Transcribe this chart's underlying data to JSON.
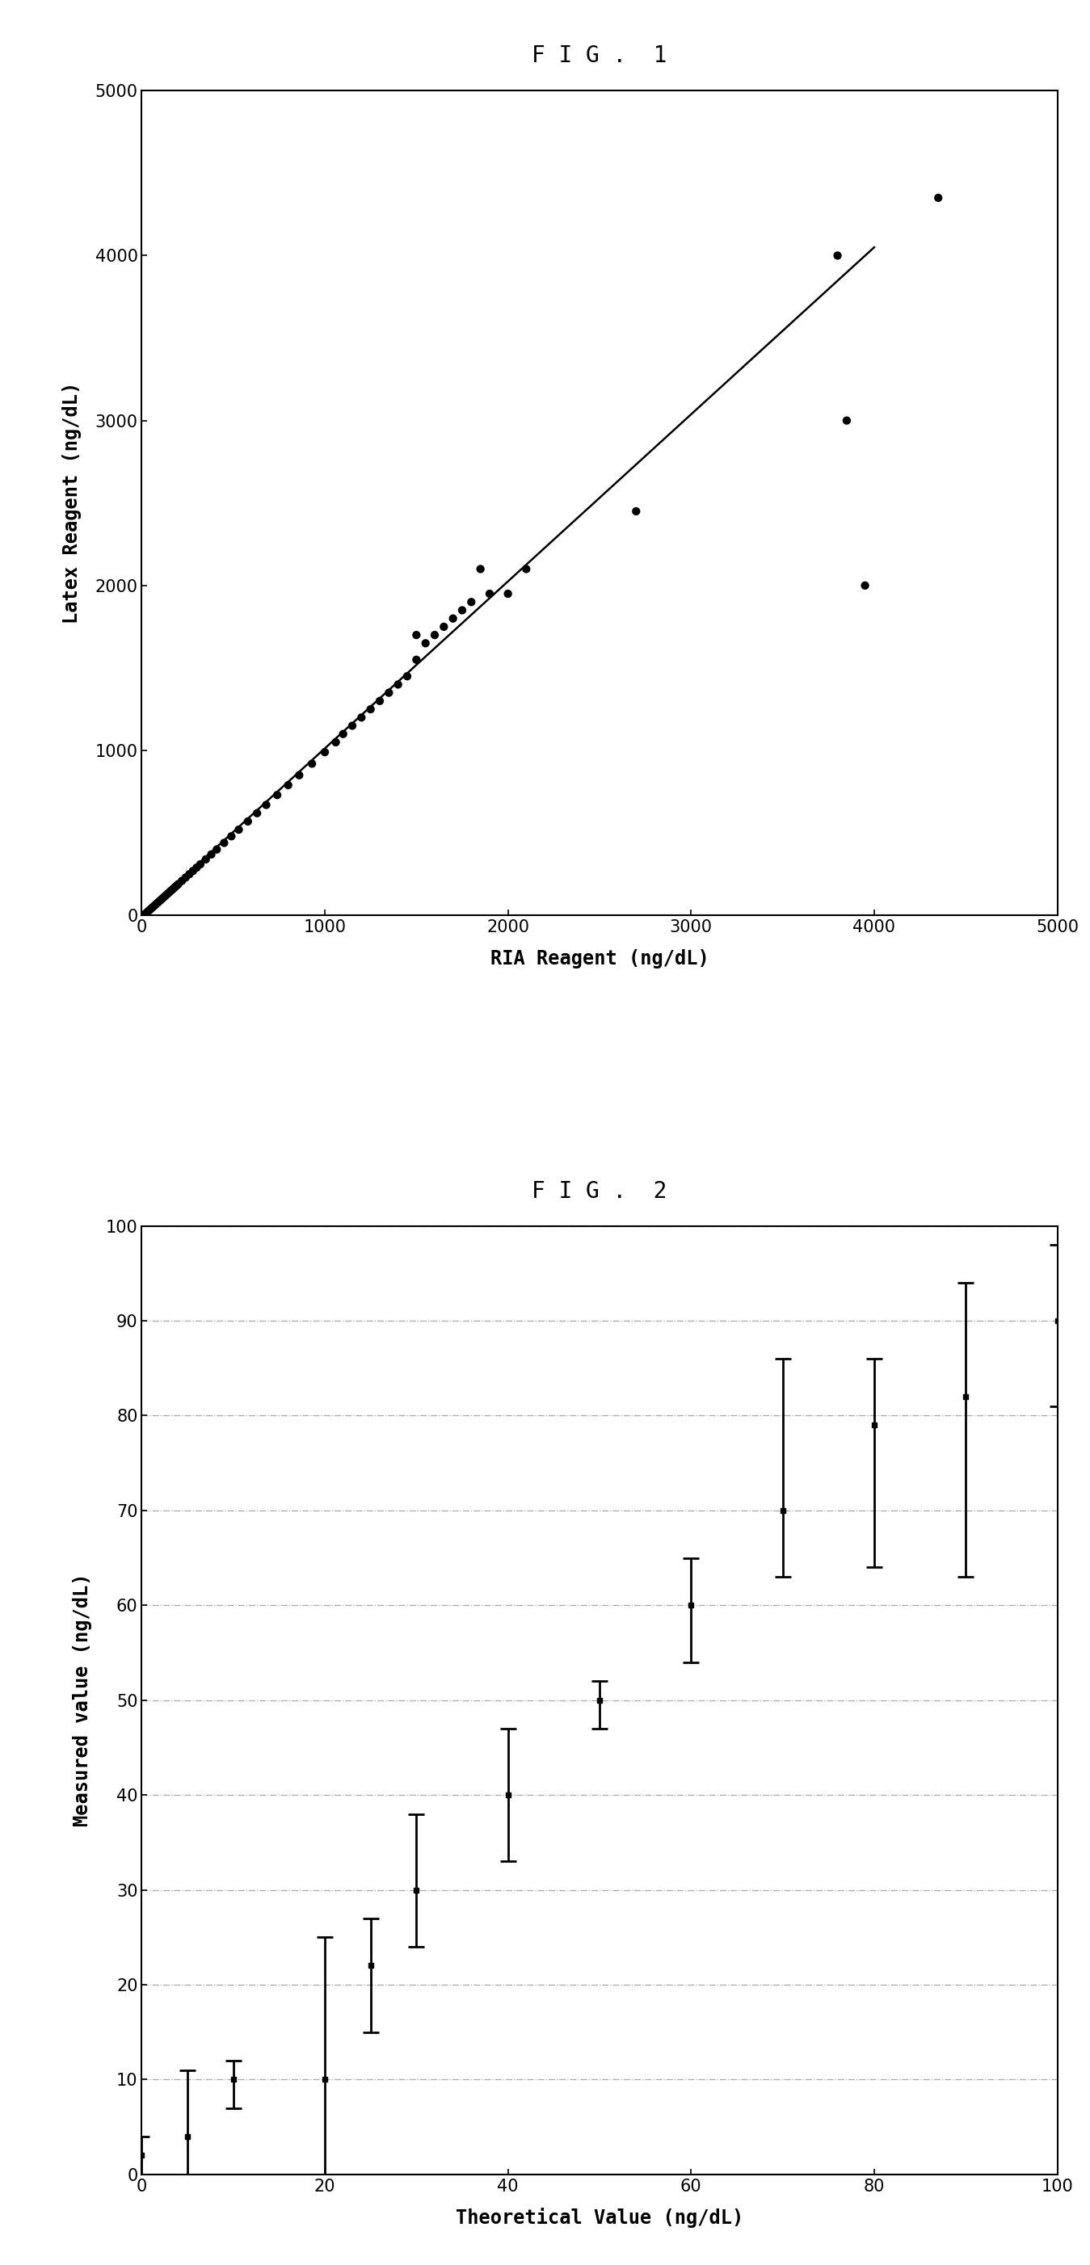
{
  "fig1": {
    "title": "F I G .  1",
    "xlabel": "RIA Reagent (ng/dL)",
    "ylabel": "Latex Reagent (ng/dL)",
    "xlim": [
      0,
      5000
    ],
    "ylim": [
      0,
      5000
    ],
    "xticks": [
      0,
      1000,
      2000,
      3000,
      4000,
      5000
    ],
    "yticks": [
      0,
      1000,
      2000,
      3000,
      4000,
      5000
    ],
    "scatter_x": [
      20,
      30,
      40,
      50,
      60,
      70,
      80,
      90,
      100,
      110,
      120,
      130,
      140,
      150,
      160,
      170,
      180,
      190,
      200,
      220,
      240,
      260,
      280,
      300,
      320,
      350,
      380,
      410,
      450,
      490,
      530,
      580,
      630,
      680,
      740,
      800,
      860,
      930,
      1000,
      1060,
      1100,
      1150,
      1200,
      1250,
      1300,
      1350,
      1400,
      1450,
      1500,
      1500,
      1550,
      1600,
      1650,
      1700,
      1750,
      1800,
      1850,
      1900,
      2000,
      2100,
      2700,
      3800,
      3850,
      3950,
      4350
    ],
    "scatter_y": [
      10,
      20,
      30,
      40,
      50,
      60,
      70,
      80,
      90,
      100,
      110,
      120,
      130,
      140,
      150,
      160,
      170,
      180,
      190,
      210,
      230,
      250,
      270,
      290,
      310,
      340,
      370,
      400,
      440,
      480,
      520,
      570,
      620,
      670,
      730,
      790,
      850,
      920,
      990,
      1050,
      1100,
      1150,
      1200,
      1250,
      1300,
      1350,
      1400,
      1450,
      1550,
      1700,
      1650,
      1700,
      1750,
      1800,
      1850,
      1900,
      2100,
      1950,
      1950,
      2100,
      2450,
      4000,
      3000,
      2000,
      4350
    ],
    "line_x": [
      0,
      4000
    ],
    "line_y": [
      0,
      4050
    ],
    "marker_color": "#000000",
    "marker_size": 55,
    "line_color": "#000000"
  },
  "fig2": {
    "title": "F I G .  2",
    "xlabel": "Theoretical Value (ng/dL)",
    "ylabel": "Measured value (ng/dL)",
    "xlim": [
      0,
      100
    ],
    "ylim": [
      0,
      100
    ],
    "xticks": [
      0,
      20,
      40,
      60,
      80,
      100
    ],
    "yticks": [
      0,
      10,
      20,
      30,
      40,
      50,
      60,
      70,
      80,
      90,
      100
    ],
    "x_values": [
      0,
      5,
      10,
      20,
      25,
      30,
      40,
      50,
      60,
      70,
      80,
      90,
      100
    ],
    "y_means": [
      2,
      4,
      10,
      10,
      22,
      30,
      40,
      50,
      60,
      70,
      79,
      82,
      90
    ],
    "y_upper": [
      4,
      11,
      12,
      25,
      27,
      38,
      47,
      52,
      65,
      86,
      86,
      94,
      98
    ],
    "y_lower": [
      0,
      0,
      7,
      0,
      15,
      24,
      33,
      47,
      54,
      63,
      64,
      63,
      81
    ],
    "marker_color": "#000000",
    "line_color": "#000000",
    "grid_color": "#aaaaaa",
    "grid_style": "-."
  },
  "bg_color": "#ffffff",
  "text_color": "#000000"
}
